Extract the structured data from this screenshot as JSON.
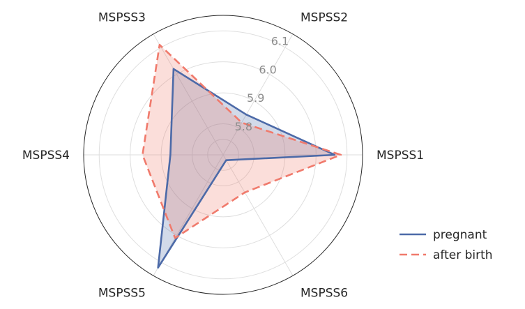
{
  "chart_data": {
    "type": "radar",
    "title": "",
    "axes": [
      "MSPSS1",
      "MSPSS2",
      "MSPSS3",
      "MSPSS4",
      "MSPSS5",
      "MSPSS6"
    ],
    "rlim": [
      5.7,
      6.15
    ],
    "rticks": [
      5.8,
      5.9,
      6.0,
      6.1
    ],
    "rtick_labels": [
      "5.8",
      "5.9",
      "6.0",
      "6.1"
    ],
    "grid": true,
    "legend_position": "bottom-right",
    "series": [
      {
        "name": "pregnant",
        "values": [
          6.06,
          5.85,
          6.02,
          5.87,
          6.12,
          5.72
        ],
        "color": "#4c6aa8",
        "linestyle": "solid"
      },
      {
        "name": "after birth",
        "values": [
          6.08,
          5.82,
          6.11,
          5.96,
          6.01,
          5.84
        ],
        "color": "#f07a6c",
        "linestyle": "dashed"
      }
    ]
  }
}
